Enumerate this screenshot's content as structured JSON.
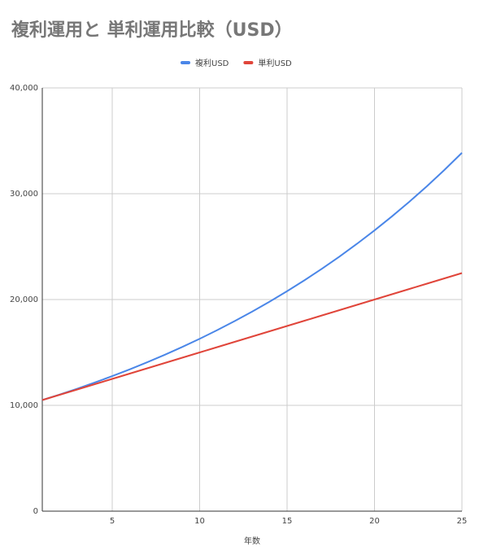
{
  "chart_data": {
    "type": "line",
    "title": "複利運用と 単利運用比較（USD）",
    "x_label": "年数",
    "x": [
      1,
      2,
      3,
      4,
      5,
      6,
      7,
      8,
      9,
      10,
      11,
      12,
      13,
      14,
      15,
      16,
      17,
      18,
      19,
      20,
      21,
      22,
      23,
      24,
      25
    ],
    "series": [
      {
        "name": "複利USD",
        "color": "#4a86e8",
        "values": [
          10500,
          11025,
          11576,
          12155,
          12763,
          13401,
          14071,
          14775,
          15513,
          16289,
          17103,
          17959,
          18856,
          19799,
          20789,
          21829,
          22920,
          24066,
          25270,
          26533,
          27860,
          29253,
          30715,
          32251,
          33864
        ]
      },
      {
        "name": "単利USD",
        "color": "#e0453a",
        "values": [
          10500,
          11000,
          11500,
          12000,
          12500,
          13000,
          13500,
          14000,
          14500,
          15000,
          15500,
          16000,
          16500,
          17000,
          17500,
          18000,
          18500,
          19000,
          19500,
          20000,
          20500,
          21000,
          21500,
          22000,
          22500
        ]
      }
    ],
    "xlim": [
      1,
      25
    ],
    "xticks": [
      5,
      10,
      15,
      20,
      25
    ],
    "ylim": [
      0,
      40000
    ],
    "yticks": [
      0,
      {
        "value": 10000,
        "label": "10,000"
      },
      {
        "value": 20000,
        "label": "20,000"
      },
      {
        "value": 30000,
        "label": "30,000"
      },
      {
        "value": 40000,
        "label": "40,000"
      }
    ],
    "grid": true,
    "legend": "top"
  }
}
